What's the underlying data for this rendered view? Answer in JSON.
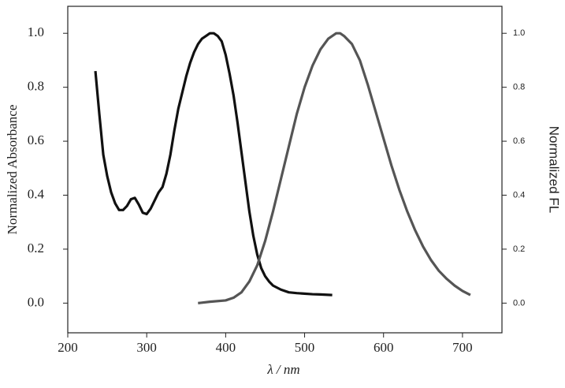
{
  "chart_data": {
    "type": "line",
    "x_label": "λ / nm",
    "y_label": "Normalized Absorbance",
    "y2_label": "Normalized FL",
    "xlim": [
      200,
      750
    ],
    "xticks": [
      200,
      300,
      400,
      500,
      600,
      700
    ],
    "ylim": [
      -0.11,
      1.1
    ],
    "yticks": [
      {
        "value": 0,
        "label": "0.0"
      },
      {
        "value": 0.2,
        "label": "0.2"
      },
      {
        "value": 0.4,
        "label": "0.4"
      },
      {
        "value": 0.6,
        "label": "0.6"
      },
      {
        "value": 0.8,
        "label": "0.8"
      },
      {
        "value": 1,
        "label": "1.0"
      }
    ],
    "y2lim": [
      -0.11,
      1.1
    ],
    "y2ticks": [
      {
        "value": 0,
        "label": "0.0"
      },
      {
        "value": 0.2,
        "label": "0.2"
      },
      {
        "value": 0.4,
        "label": "0.4"
      },
      {
        "value": 0.6,
        "label": "0.6"
      },
      {
        "value": 0.8,
        "label": "0.8"
      },
      {
        "value": 1,
        "label": "1.0"
      }
    ],
    "series": [
      {
        "color": "#111111",
        "x": [
          235,
          240,
          245,
          250,
          255,
          260,
          265,
          270,
          275,
          280,
          285,
          290,
          295,
          300,
          305,
          310,
          315,
          320,
          325,
          330,
          335,
          340,
          345,
          350,
          355,
          360,
          365,
          370,
          375,
          380,
          385,
          390,
          395,
          400,
          405,
          410,
          415,
          420,
          425,
          430,
          435,
          440,
          445,
          450,
          455,
          460,
          470,
          480,
          490,
          500,
          510,
          520,
          535
        ],
        "values": [
          0.86,
          0.7,
          0.55,
          0.47,
          0.41,
          0.37,
          0.345,
          0.345,
          0.36,
          0.385,
          0.39,
          0.365,
          0.335,
          0.33,
          0.35,
          0.38,
          0.41,
          0.43,
          0.48,
          0.55,
          0.64,
          0.72,
          0.78,
          0.84,
          0.89,
          0.93,
          0.96,
          0.98,
          0.99,
          1.0,
          1.0,
          0.99,
          0.97,
          0.92,
          0.85,
          0.77,
          0.67,
          0.56,
          0.45,
          0.34,
          0.25,
          0.18,
          0.13,
          0.1,
          0.08,
          0.065,
          0.05,
          0.04,
          0.037,
          0.035,
          0.033,
          0.032,
          0.03
        ]
      },
      {
        "color": "#555555",
        "axis": "y2",
        "x": [
          365,
          380,
          400,
          410,
          420,
          430,
          440,
          450,
          460,
          470,
          480,
          490,
          500,
          510,
          520,
          530,
          540,
          545,
          550,
          560,
          570,
          580,
          590,
          600,
          610,
          620,
          630,
          640,
          650,
          660,
          670,
          680,
          690,
          700,
          710
        ],
        "values": [
          0.0,
          0.005,
          0.01,
          0.02,
          0.04,
          0.08,
          0.14,
          0.23,
          0.34,
          0.46,
          0.58,
          0.7,
          0.8,
          0.88,
          0.94,
          0.98,
          1.0,
          1.0,
          0.99,
          0.96,
          0.9,
          0.81,
          0.71,
          0.61,
          0.51,
          0.42,
          0.34,
          0.27,
          0.21,
          0.16,
          0.12,
          0.09,
          0.065,
          0.045,
          0.03
        ]
      }
    ]
  }
}
